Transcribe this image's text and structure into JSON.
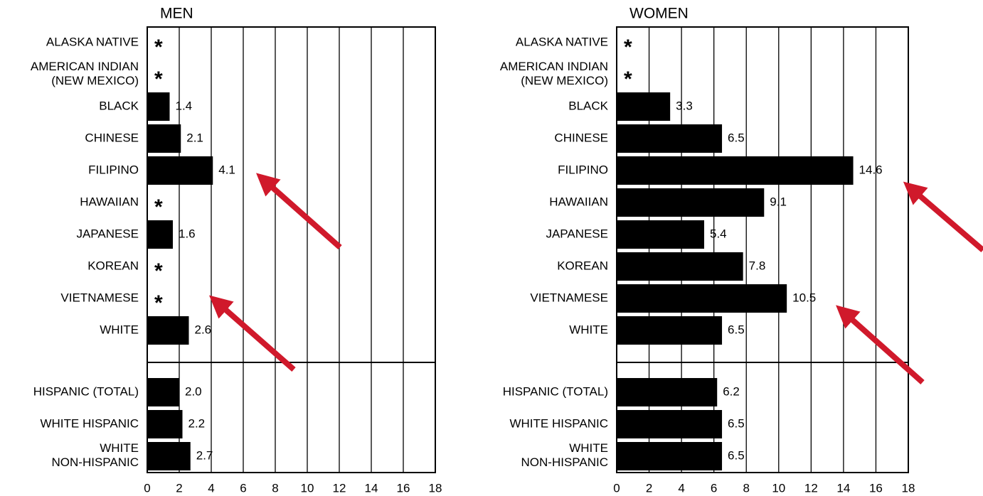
{
  "chart_data": [
    {
      "type": "bar",
      "orientation": "horizontal",
      "title": "MEN",
      "categories": [
        "ALASKA NATIVE",
        "AMERICAN INDIAN\n(NEW MEXICO)",
        "BLACK",
        "CHINESE",
        "FILIPINO",
        "HAWAIIAN",
        "JAPANESE",
        "KOREAN",
        "VIETNAMESE",
        "WHITE",
        "HISPANIC (TOTAL)",
        "WHITE HISPANIC",
        "WHITE\nNON-HISPANIC"
      ],
      "values": [
        null,
        null,
        1.4,
        2.1,
        4.1,
        null,
        1.6,
        null,
        null,
        2.6,
        2.0,
        2.2,
        2.7
      ],
      "value_labels": [
        "*",
        "*",
        "1.4",
        "2.1",
        "4.1",
        "*",
        "1.6",
        "*",
        "*",
        "2.6",
        "2.0",
        "2.2",
        "2.7"
      ],
      "color": "#000000",
      "xlim": [
        0,
        18
      ],
      "xticks": [
        0,
        2,
        4,
        6,
        8,
        10,
        12,
        14,
        16,
        18
      ],
      "grid": true
    },
    {
      "type": "bar",
      "orientation": "horizontal",
      "title": "WOMEN",
      "categories": [
        "ALASKA NATIVE",
        "AMERICAN INDIAN\n(NEW MEXICO)",
        "BLACK",
        "CHINESE",
        "FILIPINO",
        "HAWAIIAN",
        "JAPANESE",
        "KOREAN",
        "VIETNAMESE",
        "WHITE",
        "HISPANIC (TOTAL)",
        "WHITE HISPANIC",
        "WHITE\nNON-HISPANIC"
      ],
      "values": [
        null,
        null,
        3.3,
        6.5,
        14.6,
        9.1,
        5.4,
        7.8,
        10.5,
        6.5,
        6.2,
        6.5,
        6.5
      ],
      "value_labels": [
        "*",
        "*",
        "3.3",
        "6.5",
        "14.6",
        "9.1",
        "5.4",
        "7.8",
        "10.5",
        "6.5",
        "6.2",
        "6.5",
        "6.5"
      ],
      "color": "#000000",
      "xlim": [
        0,
        18
      ],
      "xticks": [
        0,
        2,
        4,
        6,
        8,
        10,
        12,
        14,
        16,
        18
      ],
      "grid": true
    }
  ]
}
